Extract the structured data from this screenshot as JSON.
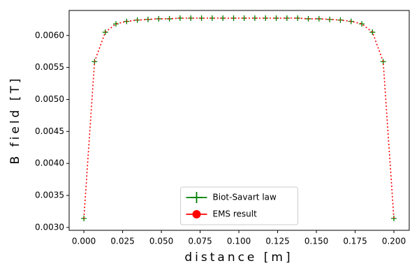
{
  "chart_data": {
    "type": "line",
    "x_label": "distance [m]",
    "y_label": "B field [T]",
    "x": [
      0,
      0.0069,
      0.0138,
      0.0207,
      0.0276,
      0.0345,
      0.0414,
      0.0483,
      0.0552,
      0.0621,
      0.069,
      0.0759,
      0.0828,
      0.0897,
      0.0966,
      0.1034,
      0.1103,
      0.1172,
      0.1241,
      0.131,
      0.1379,
      0.1448,
      0.1517,
      0.1586,
      0.1655,
      0.1724,
      0.1793,
      0.1862,
      0.1931,
      0.2
    ],
    "series": [
      {
        "name": "Biot-Savart law",
        "color": "#008000",
        "marker": "+",
        "values": [
          0.00314,
          0.00559,
          0.00605,
          0.00618,
          0.00622,
          0.00624,
          0.00625,
          0.00626,
          0.00626,
          0.00627,
          0.00627,
          0.00627,
          0.00627,
          0.00627,
          0.00627,
          0.00627,
          0.00627,
          0.00627,
          0.00627,
          0.00627,
          0.00627,
          0.00626,
          0.00626,
          0.00625,
          0.00624,
          0.00622,
          0.00618,
          0.00605,
          0.00559,
          0.00314
        ]
      },
      {
        "name": "EMS result",
        "color": "#ff0000",
        "linestyle": "dotted",
        "values": [
          0.00314,
          0.00559,
          0.00605,
          0.00618,
          0.00622,
          0.00624,
          0.00625,
          0.00626,
          0.00626,
          0.00627,
          0.00627,
          0.00627,
          0.00627,
          0.00627,
          0.00627,
          0.00627,
          0.00627,
          0.00627,
          0.00627,
          0.00627,
          0.00627,
          0.00626,
          0.00626,
          0.00625,
          0.00624,
          0.00622,
          0.00618,
          0.00605,
          0.00559,
          0.00314
        ]
      }
    ],
    "xlim": [
      -0.0095,
      0.2099
    ],
    "xticks": [
      {
        "value": 0,
        "label": "0.000"
      },
      {
        "value": 0.025,
        "label": "0.025"
      },
      {
        "value": 0.05,
        "label": "0.050"
      },
      {
        "value": 0.075,
        "label": "0.075"
      },
      {
        "value": 0.1,
        "label": "0.100"
      },
      {
        "value": 0.125,
        "label": "0.125"
      },
      {
        "value": 0.15,
        "label": "0.150"
      },
      {
        "value": 0.175,
        "label": "0.175"
      },
      {
        "value": 0.2,
        "label": "0.200"
      }
    ],
    "ylim": [
      0.002955,
      0.00639
    ],
    "yticks": [
      {
        "value": 0.003,
        "label": "0.0030"
      },
      {
        "value": 0.0035,
        "label": "0.0035"
      },
      {
        "value": 0.004,
        "label": "0.0040"
      },
      {
        "value": 0.0045,
        "label": "0.0045"
      },
      {
        "value": 0.005,
        "label": "0.0050"
      },
      {
        "value": 0.0055,
        "label": "0.0055"
      },
      {
        "value": 0.006,
        "label": "0.0060"
      }
    ],
    "legend": "lower center"
  }
}
